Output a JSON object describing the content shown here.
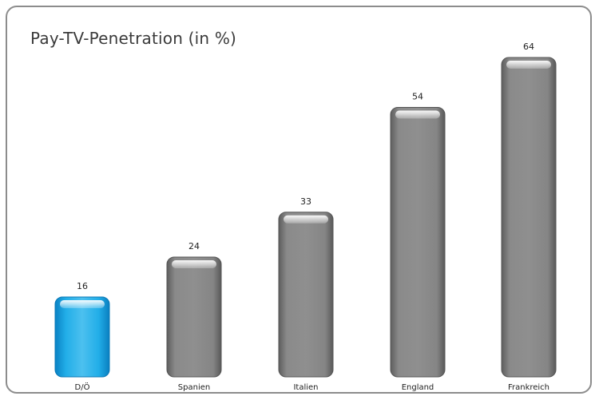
{
  "chart_data": {
    "type": "bar",
    "title": "Pay-TV-Penetration (in %)",
    "xlabel": "",
    "ylabel": "",
    "categories": [
      "D/Ö",
      "Spanien",
      "Italien",
      "England",
      "Frankreich"
    ],
    "values": [
      16,
      24,
      33,
      54,
      64
    ],
    "ylim": [
      0,
      64
    ],
    "grid": false,
    "highlight_index": 0,
    "colors": {
      "highlight": "#1aa3e0",
      "default": "#7a7a7a",
      "frame": "#8c8c8c"
    }
  }
}
